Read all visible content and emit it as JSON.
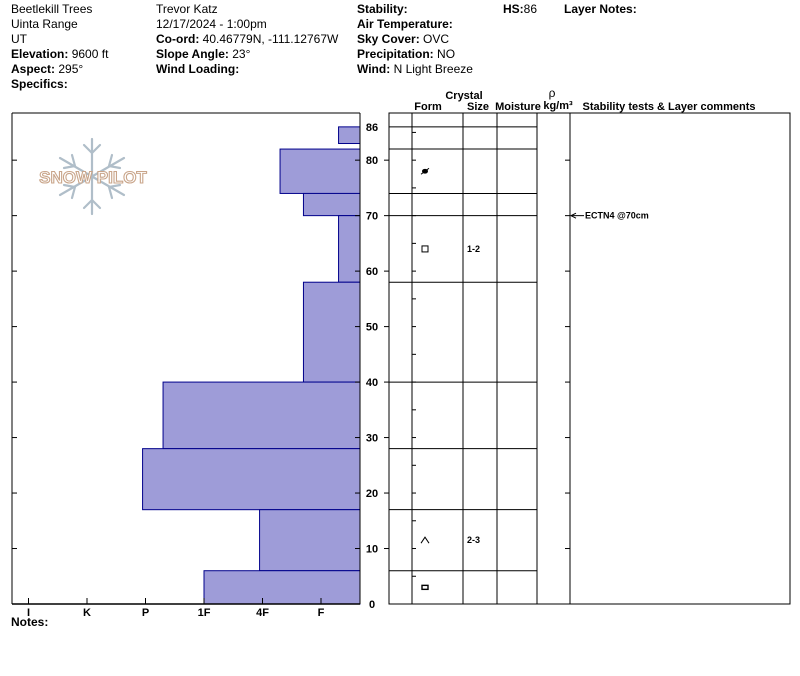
{
  "header": {
    "location": "Beetlekill Trees",
    "range": "Uinta Range",
    "state": "UT",
    "elevation_label": "Elevation:",
    "elevation_value": "9600 ft",
    "aspect_label": "Aspect:",
    "aspect_value": "295°",
    "specifics_label": "Specifics:",
    "observer": "Trevor Katz",
    "datetime": "12/17/2024 - 1:00pm",
    "coord_label": "Co-ord:",
    "coord_value": "40.46779N, -111.12767W",
    "slope_label": "Slope Angle:",
    "slope_value": "23°",
    "windload_label": "Wind Loading:",
    "stability_label": "Stability:",
    "airtemp_label": "Air Temperature:",
    "sky_label": "Sky Cover:",
    "sky_value": "OVC",
    "precip_label": "Precipitation:",
    "precip_value": "NO",
    "wind_label": "Wind:",
    "wind_value": "N Light Breeze",
    "hs_label": "HS:",
    "hs_value": "86",
    "layer_notes_label": "Layer Notes:"
  },
  "logo_text": "SNOW PILOT",
  "notes_label": "Notes:",
  "table_headers": {
    "crystal": "Crystal",
    "form": "Form",
    "size": "Size",
    "moisture": "Moisture",
    "rho": "ρ",
    "density_unit": "kg/m³",
    "stability": "Stability tests & Layer comments"
  },
  "colors": {
    "hardness_fill": "#9e9cd8",
    "hardness_stroke": "#00008b",
    "logo": "#c9a58a"
  },
  "chart_data": {
    "type": "bar",
    "orientation": "horizontal",
    "x_categories": [
      "I",
      "K",
      "P",
      "1F",
      "4F",
      "F"
    ],
    "x_hardness_note": "hardness index, I=0 K=1 P=2 1F=3 4F=4 F=5",
    "y_ticks": [
      0,
      10,
      20,
      30,
      40,
      50,
      60,
      70,
      80,
      86
    ],
    "ylim": [
      0,
      86
    ],
    "layers": [
      {
        "bottom": 83,
        "top": 86,
        "hardness": 5.3
      },
      {
        "bottom": 74,
        "top": 82,
        "hardness": 4.3
      },
      {
        "bottom": 70,
        "top": 74,
        "hardness": 4.7
      },
      {
        "bottom": 58,
        "top": 70,
        "hardness": 5.3
      },
      {
        "bottom": 40,
        "top": 58,
        "hardness": 4.7
      },
      {
        "bottom": 28,
        "top": 40,
        "hardness": 2.3
      },
      {
        "bottom": 17,
        "top": 28,
        "hardness": 1.95
      },
      {
        "bottom": 6,
        "top": 17,
        "hardness": 3.95
      },
      {
        "bottom": 0,
        "top": 6,
        "hardness": 3.0
      }
    ],
    "layer_lines": [
      86,
      82,
      74,
      70,
      58,
      40,
      28,
      17,
      6
    ],
    "grain_rows": [
      {
        "y": 78,
        "form": "ppgp-icon",
        "size": ""
      },
      {
        "y": 64,
        "form": "fc-icon",
        "size": "1-2"
      },
      {
        "y": 11.5,
        "form": "dh-icon",
        "size": "2-3"
      },
      {
        "y": 3,
        "form": "mf-icon",
        "size": ""
      }
    ],
    "stability_tests": [
      {
        "depth": 70,
        "text": "ECTN4 @70cm"
      }
    ]
  }
}
